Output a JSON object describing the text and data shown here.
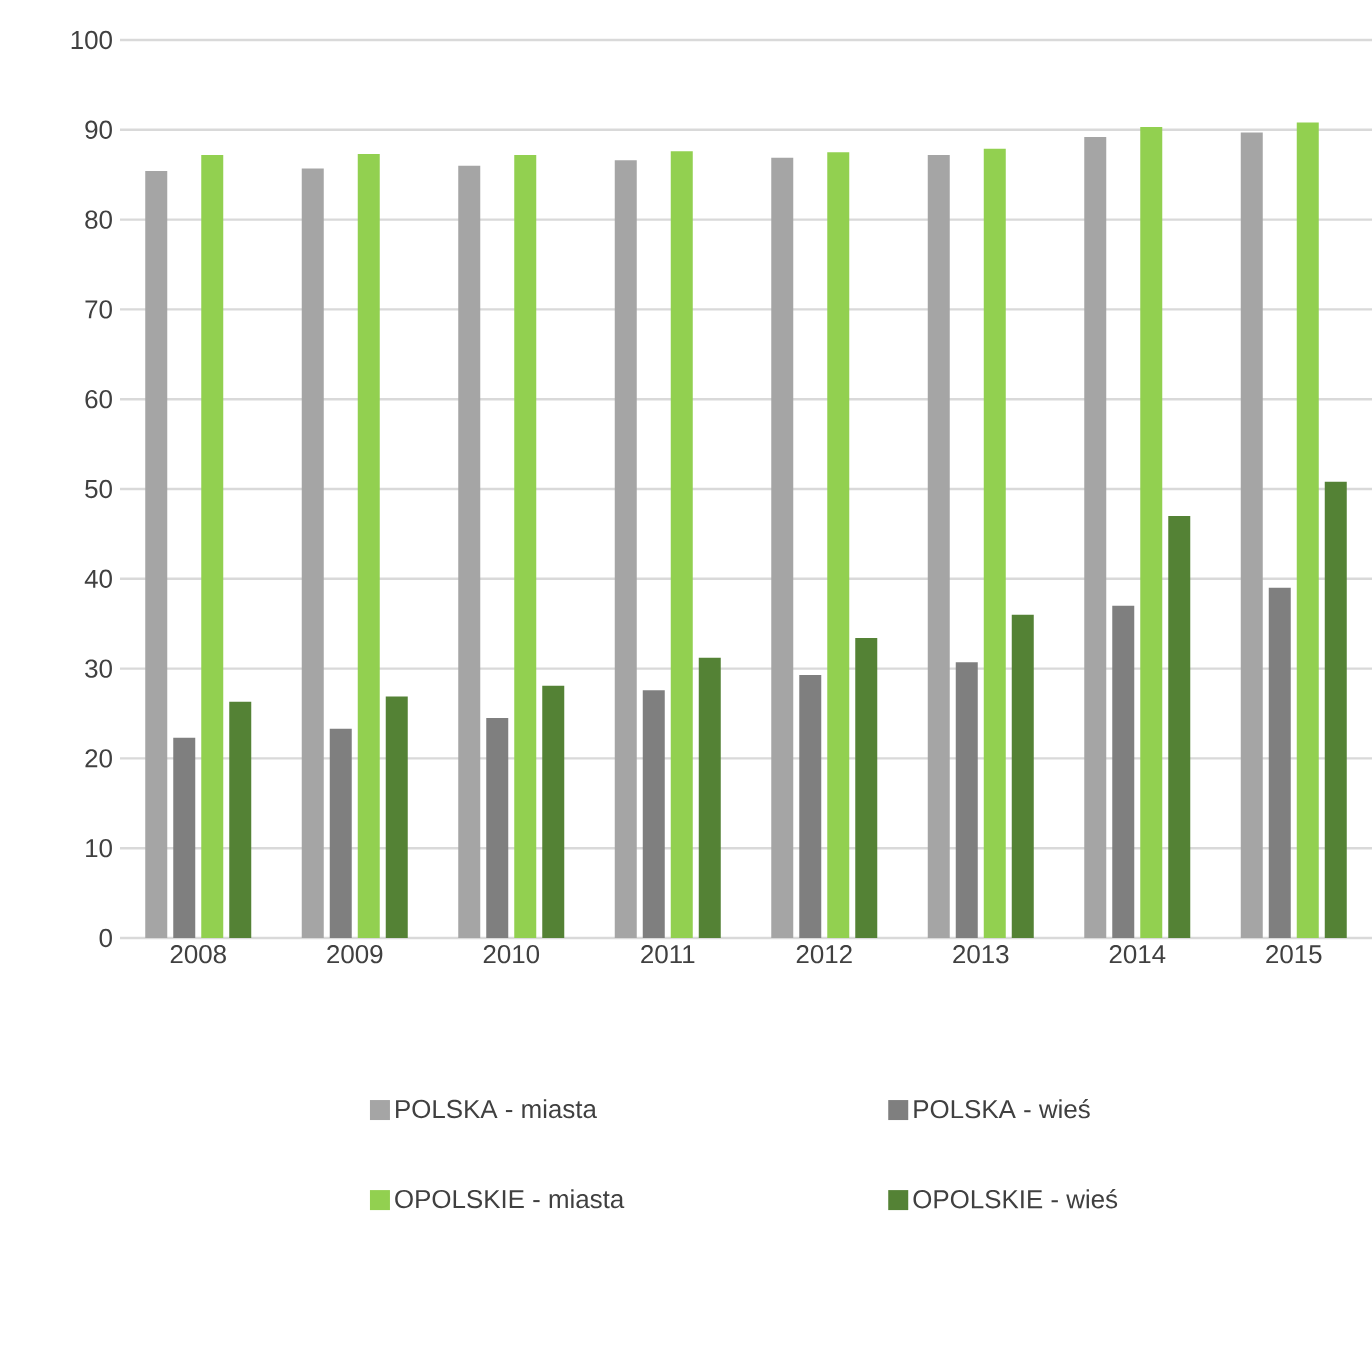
{
  "chart_data": {
    "type": "bar",
    "categories": [
      "2008",
      "2009",
      "2010",
      "2011",
      "2012",
      "2013",
      "2014",
      "2015"
    ],
    "series": [
      {
        "name": "POLSKA - miasta",
        "color": "#a5a5a5",
        "values": [
          85.4,
          85.7,
          86.0,
          86.6,
          86.9,
          87.2,
          89.2,
          89.7
        ]
      },
      {
        "name": "POLSKA - wieś",
        "color": "#7f7f7f",
        "values": [
          22.3,
          23.3,
          24.5,
          27.6,
          29.3,
          30.7,
          37.0,
          39.0
        ]
      },
      {
        "name": "OPOLSKIE - miasta",
        "color": "#92d050",
        "values": [
          87.2,
          87.3,
          87.2,
          87.6,
          87.5,
          87.9,
          90.3,
          90.8
        ]
      },
      {
        "name": "OPOLSKIE - wieś",
        "color": "#548235",
        "values": [
          26.3,
          26.9,
          28.1,
          31.2,
          33.4,
          36.0,
          47.0,
          50.8
        ]
      }
    ],
    "ylim": [
      0,
      100
    ],
    "yticks": [
      0,
      10,
      20,
      30,
      40,
      50,
      60,
      70,
      80,
      90,
      100
    ],
    "grid": "y",
    "legend": "bottom"
  }
}
